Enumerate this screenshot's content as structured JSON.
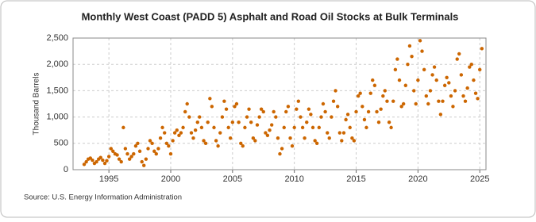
{
  "chart_data": {
    "type": "scatter",
    "title": "Monthly West Coast (PADD 5) Asphalt and Road Oil Stocks at Bulk Terminals",
    "y_label": "Thousand Barrels",
    "source": "Source: U.S. Energy Information Administration",
    "color": "#cc6600",
    "grid": true,
    "xlim": [
      1992.1,
      2025.5
    ],
    "xticks": [
      1995,
      2000,
      2005,
      2010,
      2015,
      2020,
      2025
    ],
    "ylim": [
      0,
      2500
    ],
    "yticks": [
      0,
      500,
      {
        "value": 1000,
        "label": "1,000"
      },
      {
        "value": 1500,
        "label": "1,500"
      },
      {
        "value": 2000,
        "label": "2,000"
      },
      {
        "value": 2500,
        "label": "2,500"
      }
    ],
    "x": [
      1993,
      1993.17,
      1993.33,
      1993.5,
      1993.67,
      1993.83,
      1994,
      1994.17,
      1994.33,
      1994.5,
      1994.67,
      1994.83,
      1995,
      1995.17,
      1995.33,
      1995.5,
      1995.67,
      1995.83,
      1996,
      1996.17,
      1996.33,
      1996.5,
      1996.67,
      1996.83,
      1997,
      1997.17,
      1997.33,
      1997.5,
      1997.67,
      1997.83,
      1998,
      1998.17,
      1998.33,
      1998.5,
      1998.67,
      1998.83,
      1999,
      1999.17,
      1999.33,
      1999.5,
      1999.67,
      1999.83,
      2000,
      2000.17,
      2000.33,
      2000.5,
      2000.67,
      2000.83,
      2001,
      2001.17,
      2001.33,
      2001.5,
      2001.67,
      2001.83,
      2002,
      2002.17,
      2002.33,
      2002.5,
      2002.67,
      2002.83,
      2003,
      2003.17,
      2003.33,
      2003.5,
      2003.67,
      2003.83,
      2004,
      2004.17,
      2004.33,
      2004.5,
      2004.67,
      2004.83,
      2005,
      2005.17,
      2005.33,
      2005.5,
      2005.67,
      2005.83,
      2006,
      2006.17,
      2006.33,
      2006.5,
      2006.67,
      2006.83,
      2007,
      2007.17,
      2007.33,
      2007.5,
      2007.67,
      2007.83,
      2008,
      2008.17,
      2008.33,
      2008.5,
      2008.67,
      2008.83,
      2009,
      2009.17,
      2009.33,
      2009.5,
      2009.67,
      2009.83,
      2010,
      2010.17,
      2010.33,
      2010.5,
      2010.67,
      2010.83,
      2011,
      2011.17,
      2011.33,
      2011.5,
      2011.67,
      2011.83,
      2012,
      2012.17,
      2012.33,
      2012.5,
      2012.67,
      2012.83,
      2013,
      2013.17,
      2013.33,
      2013.5,
      2013.67,
      2013.83,
      2014,
      2014.17,
      2014.33,
      2014.5,
      2014.67,
      2014.83,
      2015,
      2015.17,
      2015.33,
      2015.5,
      2015.67,
      2015.83,
      2016,
      2016.17,
      2016.33,
      2016.5,
      2016.67,
      2016.83,
      2017,
      2017.17,
      2017.33,
      2017.5,
      2017.67,
      2017.83,
      2018,
      2018.17,
      2018.33,
      2018.5,
      2018.67,
      2018.83,
      2019,
      2019.17,
      2019.33,
      2019.5,
      2019.67,
      2019.83,
      2020,
      2020.17,
      2020.33,
      2020.5,
      2020.67,
      2020.83,
      2021,
      2021.17,
      2021.33,
      2021.5,
      2021.67,
      2021.83,
      2022,
      2022.17,
      2022.33,
      2022.5,
      2022.67,
      2022.83,
      2023,
      2023.17,
      2023.33,
      2023.5,
      2023.67,
      2023.83,
      2024,
      2024.17,
      2024.33,
      2024.5,
      2024.67,
      2024.83,
      2025,
      2025.17
    ],
    "values": [
      100,
      150,
      200,
      220,
      180,
      120,
      150,
      200,
      230,
      180,
      120,
      170,
      250,
      400,
      350,
      300,
      280,
      200,
      150,
      800,
      400,
      300,
      200,
      250,
      300,
      450,
      500,
      350,
      150,
      80,
      200,
      400,
      550,
      500,
      350,
      300,
      400,
      600,
      800,
      700,
      500,
      450,
      300,
      550,
      700,
      750,
      650,
      700,
      800,
      1100,
      1250,
      1000,
      700,
      600,
      750,
      900,
      1000,
      800,
      550,
      500,
      900,
      1350,
      1200,
      800,
      550,
      450,
      700,
      1000,
      1300,
      1150,
      800,
      600,
      900,
      1200,
      1250,
      900,
      500,
      450,
      800,
      1000,
      1150,
      900,
      600,
      550,
      850,
      1000,
      1150,
      1100,
      700,
      650,
      750,
      850,
      1100,
      1000,
      600,
      300,
      400,
      800,
      1100,
      1200,
      600,
      450,
      800,
      1150,
      1300,
      1000,
      800,
      600,
      900,
      1150,
      1050,
      800,
      550,
      500,
      800,
      1000,
      1250,
      1100,
      700,
      600,
      1000,
      1300,
      1500,
      1200,
      700,
      550,
      700,
      950,
      1050,
      800,
      600,
      550,
      1100,
      1400,
      1450,
      1200,
      950,
      800,
      1100,
      1450,
      1700,
      1600,
      1100,
      900,
      1150,
      1400,
      1500,
      1300,
      900,
      800,
      1300,
      1900,
      2100,
      1700,
      1200,
      1250,
      1600,
      2000,
      2350,
      2150,
      1500,
      1250,
      1700,
      2450,
      2250,
      1900,
      1400,
      1250,
      1500,
      1800,
      1950,
      1700,
      1300,
      1050,
      1300,
      1600,
      1750,
      1650,
      1400,
      1200,
      1500,
      2100,
      2200,
      1800,
      1400,
      1300,
      1550,
      1950,
      2000,
      1700,
      1450,
      1350,
      1900,
      2300
    ]
  }
}
